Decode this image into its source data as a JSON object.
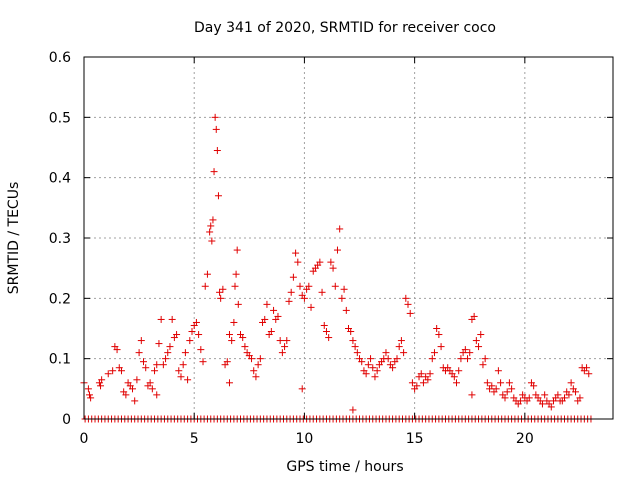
{
  "chart_data": {
    "type": "scatter",
    "title": "Day 341 of 2020, SRMTID for receiver coco",
    "xlabel": "GPS time / hours",
    "ylabel": "SRMTID / TECUs",
    "xlim": [
      0,
      24
    ],
    "ylim": [
      0,
      0.6
    ],
    "xticks": [
      0,
      5,
      10,
      15,
      20
    ],
    "xtick_labels": [
      "0",
      "5",
      "10",
      "15",
      "20"
    ],
    "yticks": [
      0,
      0.1,
      0.2,
      0.3,
      0.4,
      0.5,
      0.6
    ],
    "ytick_labels": [
      "0",
      "0.1",
      "0.2",
      "0.3",
      "0.4",
      "0.5",
      "0.6"
    ],
    "grid": true,
    "marker": "+",
    "color": "#e00000",
    "series": [
      {
        "name": "SRMTID",
        "points": [
          [
            0.0,
            0.06
          ],
          [
            0.2,
            0.05
          ],
          [
            0.25,
            0.04
          ],
          [
            0.3,
            0.035
          ],
          [
            0.7,
            0.06
          ],
          [
            0.75,
            0.055
          ],
          [
            0.8,
            0.065
          ],
          [
            1.1,
            0.075
          ],
          [
            1.3,
            0.08
          ],
          [
            1.4,
            0.12
          ],
          [
            1.5,
            0.115
          ],
          [
            1.6,
            0.085
          ],
          [
            1.7,
            0.08
          ],
          [
            1.8,
            0.045
          ],
          [
            1.9,
            0.04
          ],
          [
            2.0,
            0.06
          ],
          [
            2.1,
            0.055
          ],
          [
            2.2,
            0.05
          ],
          [
            2.3,
            0.03
          ],
          [
            2.4,
            0.065
          ],
          [
            2.5,
            0.11
          ],
          [
            2.6,
            0.13
          ],
          [
            2.7,
            0.095
          ],
          [
            2.8,
            0.085
          ],
          [
            2.9,
            0.055
          ],
          [
            3.0,
            0.06
          ],
          [
            3.1,
            0.05
          ],
          [
            3.2,
            0.08
          ],
          [
            3.3,
            0.09
          ],
          [
            3.4,
            0.125
          ],
          [
            3.5,
            0.165
          ],
          [
            3.6,
            0.09
          ],
          [
            3.7,
            0.1
          ],
          [
            3.8,
            0.11
          ],
          [
            3.9,
            0.12
          ],
          [
            4.0,
            0.165
          ],
          [
            4.1,
            0.135
          ],
          [
            4.2,
            0.14
          ],
          [
            4.3,
            0.08
          ],
          [
            4.4,
            0.07
          ],
          [
            4.5,
            0.09
          ],
          [
            4.6,
            0.11
          ],
          [
            4.7,
            0.065
          ],
          [
            4.8,
            0.13
          ],
          [
            4.9,
            0.145
          ],
          [
            5.0,
            0.155
          ],
          [
            5.1,
            0.16
          ],
          [
            5.2,
            0.14
          ],
          [
            5.3,
            0.115
          ],
          [
            5.4,
            0.095
          ],
          [
            5.5,
            0.22
          ],
          [
            5.6,
            0.24
          ],
          [
            5.7,
            0.31
          ],
          [
            5.75,
            0.32
          ],
          [
            5.8,
            0.295
          ],
          [
            5.85,
            0.33
          ],
          [
            5.9,
            0.41
          ],
          [
            5.95,
            0.5
          ],
          [
            6.0,
            0.48
          ],
          [
            6.05,
            0.445
          ],
          [
            6.1,
            0.37
          ],
          [
            6.15,
            0.21
          ],
          [
            6.2,
            0.2
          ],
          [
            6.3,
            0.215
          ],
          [
            6.4,
            0.09
          ],
          [
            6.5,
            0.095
          ],
          [
            6.6,
            0.14
          ],
          [
            6.7,
            0.13
          ],
          [
            6.8,
            0.16
          ],
          [
            6.85,
            0.22
          ],
          [
            6.9,
            0.24
          ],
          [
            6.95,
            0.28
          ],
          [
            7.0,
            0.19
          ],
          [
            7.1,
            0.14
          ],
          [
            7.2,
            0.135
          ],
          [
            7.3,
            0.12
          ],
          [
            7.4,
            0.11
          ],
          [
            7.5,
            0.105
          ],
          [
            7.6,
            0.1
          ],
          [
            7.7,
            0.08
          ],
          [
            7.8,
            0.07
          ],
          [
            7.9,
            0.09
          ],
          [
            8.0,
            0.1
          ],
          [
            8.1,
            0.16
          ],
          [
            8.2,
            0.165
          ],
          [
            8.3,
            0.19
          ],
          [
            8.4,
            0.14
          ],
          [
            8.5,
            0.145
          ],
          [
            8.6,
            0.18
          ],
          [
            8.7,
            0.165
          ],
          [
            8.8,
            0.17
          ],
          [
            8.9,
            0.13
          ],
          [
            9.0,
            0.11
          ],
          [
            9.1,
            0.12
          ],
          [
            9.2,
            0.13
          ],
          [
            9.3,
            0.195
          ],
          [
            9.4,
            0.21
          ],
          [
            9.5,
            0.235
          ],
          [
            9.6,
            0.275
          ],
          [
            9.7,
            0.26
          ],
          [
            9.8,
            0.22
          ],
          [
            9.9,
            0.205
          ],
          [
            10.0,
            0.2
          ],
          [
            10.1,
            0.215
          ],
          [
            10.2,
            0.22
          ],
          [
            10.3,
            0.185
          ],
          [
            10.4,
            0.245
          ],
          [
            10.5,
            0.25
          ],
          [
            10.6,
            0.255
          ],
          [
            10.7,
            0.26
          ],
          [
            10.8,
            0.21
          ],
          [
            10.9,
            0.155
          ],
          [
            11.0,
            0.145
          ],
          [
            11.1,
            0.135
          ],
          [
            11.2,
            0.26
          ],
          [
            11.3,
            0.25
          ],
          [
            11.4,
            0.22
          ],
          [
            11.5,
            0.28
          ],
          [
            11.6,
            0.315
          ],
          [
            11.7,
            0.2
          ],
          [
            11.8,
            0.215
          ],
          [
            11.9,
            0.18
          ],
          [
            12.0,
            0.15
          ],
          [
            12.1,
            0.145
          ],
          [
            12.2,
            0.13
          ],
          [
            12.3,
            0.12
          ],
          [
            12.4,
            0.11
          ],
          [
            12.5,
            0.1
          ],
          [
            12.6,
            0.095
          ],
          [
            12.7,
            0.08
          ],
          [
            12.8,
            0.075
          ],
          [
            12.9,
            0.09
          ],
          [
            13.0,
            0.1
          ],
          [
            13.1,
            0.085
          ],
          [
            13.2,
            0.07
          ],
          [
            13.3,
            0.08
          ],
          [
            13.4,
            0.09
          ],
          [
            13.5,
            0.095
          ],
          [
            13.6,
            0.1
          ],
          [
            13.7,
            0.11
          ],
          [
            13.8,
            0.1
          ],
          [
            13.9,
            0.09
          ],
          [
            14.0,
            0.085
          ],
          [
            14.1,
            0.095
          ],
          [
            14.2,
            0.1
          ],
          [
            14.3,
            0.12
          ],
          [
            14.4,
            0.13
          ],
          [
            14.5,
            0.11
          ],
          [
            14.6,
            0.2
          ],
          [
            14.7,
            0.19
          ],
          [
            14.8,
            0.175
          ],
          [
            14.9,
            0.06
          ],
          [
            15.0,
            0.05
          ],
          [
            15.1,
            0.055
          ],
          [
            15.2,
            0.07
          ],
          [
            15.3,
            0.075
          ],
          [
            15.4,
            0.06
          ],
          [
            15.5,
            0.07
          ],
          [
            15.6,
            0.065
          ],
          [
            15.7,
            0.075
          ],
          [
            15.8,
            0.1
          ],
          [
            15.9,
            0.11
          ],
          [
            16.0,
            0.15
          ],
          [
            16.1,
            0.14
          ],
          [
            16.2,
            0.12
          ],
          [
            16.3,
            0.085
          ],
          [
            16.4,
            0.08
          ],
          [
            16.5,
            0.085
          ],
          [
            16.6,
            0.08
          ],
          [
            16.7,
            0.075
          ],
          [
            16.8,
            0.07
          ],
          [
            16.9,
            0.06
          ],
          [
            17.0,
            0.08
          ],
          [
            17.1,
            0.1
          ],
          [
            17.2,
            0.11
          ],
          [
            17.3,
            0.115
          ],
          [
            17.4,
            0.1
          ],
          [
            17.5,
            0.11
          ],
          [
            17.6,
            0.165
          ],
          [
            17.7,
            0.17
          ],
          [
            17.8,
            0.13
          ],
          [
            17.9,
            0.12
          ],
          [
            18.0,
            0.14
          ],
          [
            18.1,
            0.09
          ],
          [
            18.2,
            0.1
          ],
          [
            18.3,
            0.06
          ],
          [
            18.4,
            0.05
          ],
          [
            18.5,
            0.055
          ],
          [
            18.6,
            0.045
          ],
          [
            18.7,
            0.05
          ],
          [
            18.8,
            0.08
          ],
          [
            18.9,
            0.06
          ],
          [
            19.0,
            0.04
          ],
          [
            19.1,
            0.035
          ],
          [
            19.2,
            0.045
          ],
          [
            19.3,
            0.06
          ],
          [
            19.4,
            0.05
          ],
          [
            19.5,
            0.035
          ],
          [
            19.6,
            0.03
          ],
          [
            19.7,
            0.025
          ],
          [
            19.8,
            0.03
          ],
          [
            19.9,
            0.04
          ],
          [
            20.0,
            0.035
          ],
          [
            20.1,
            0.03
          ],
          [
            20.2,
            0.035
          ],
          [
            20.3,
            0.06
          ],
          [
            20.4,
            0.055
          ],
          [
            20.5,
            0.04
          ],
          [
            20.6,
            0.035
          ],
          [
            20.7,
            0.03
          ],
          [
            20.8,
            0.025
          ],
          [
            20.9,
            0.04
          ],
          [
            21.0,
            0.03
          ],
          [
            21.1,
            0.025
          ],
          [
            21.2,
            0.02
          ],
          [
            21.3,
            0.03
          ],
          [
            21.4,
            0.035
          ],
          [
            21.5,
            0.04
          ],
          [
            21.6,
            0.03
          ],
          [
            21.7,
            0.03
          ],
          [
            21.8,
            0.035
          ],
          [
            21.9,
            0.045
          ],
          [
            22.0,
            0.04
          ],
          [
            22.1,
            0.06
          ],
          [
            22.2,
            0.05
          ],
          [
            22.3,
            0.045
          ],
          [
            22.4,
            0.03
          ],
          [
            22.5,
            0.035
          ],
          [
            22.6,
            0.085
          ],
          [
            22.7,
            0.08
          ],
          [
            22.8,
            0.085
          ],
          [
            22.9,
            0.075
          ],
          [
            3.3,
            0.04
          ],
          [
            6.6,
            0.06
          ],
          [
            9.9,
            0.05
          ],
          [
            12.2,
            0.015
          ],
          [
            17.6,
            0.04
          ]
        ],
        "baseline_points": {
          "y": 0,
          "x_start": 0.05,
          "x_end": 23.0,
          "x_step": 0.15
        }
      }
    ]
  }
}
